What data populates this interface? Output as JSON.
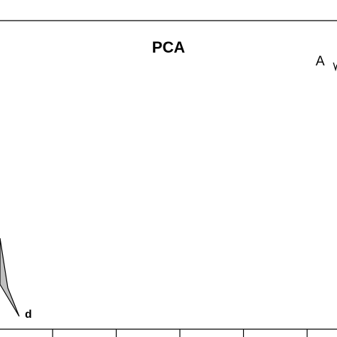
{
  "chart_data": {
    "type": "scatter",
    "title": "PCA",
    "panel_label": "A",
    "xlabel": "",
    "ylabel": "",
    "grid": false,
    "legend": "none",
    "x_ticks_count": 5,
    "hull": {
      "label": "d",
      "fill": "#c0c0c0",
      "stroke": "#000000"
    },
    "colors": {
      "axis": "#000000",
      "background": "#ffffff",
      "hull_fill": "#c0c0c0"
    }
  }
}
